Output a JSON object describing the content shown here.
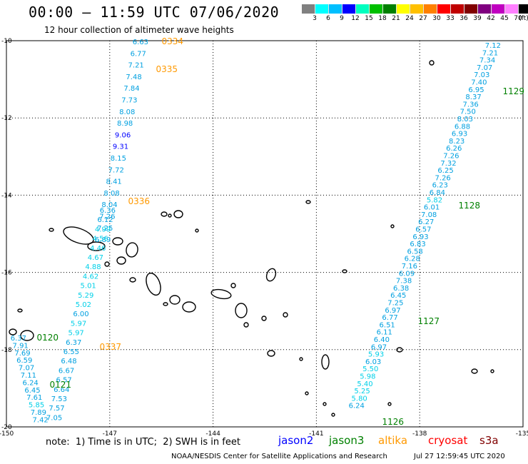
{
  "header": {
    "title": "00:00 – 11:59 UTC 07/06/2020",
    "subtitle": "12 hour collection of altimeter wave heights"
  },
  "colorbar": {
    "colors": [
      "#808080",
      "#00ffff",
      "#00bfff",
      "#0000ff",
      "#00ffbf",
      "#00c000",
      "#008000",
      "#ffff00",
      "#ffc000",
      "#ff8000",
      "#ff0000",
      "#c00000",
      "#800000",
      "#800080",
      "#c000c0",
      "#ff80ff",
      "#000000"
    ],
    "labels": [
      "3",
      "6",
      "9",
      "12",
      "15",
      "18",
      "21",
      "24",
      "27",
      "30",
      "33",
      "36",
      "39",
      "42",
      "45",
      "70"
    ],
    "unit": "(ft)"
  },
  "axes": {
    "lat_labels": [
      "-10",
      "-12",
      "-14",
      "-16",
      "-18",
      "-20"
    ],
    "lon_labels": [
      "-150",
      "-147",
      "-144",
      "-141",
      "-138",
      "-135"
    ]
  },
  "tracks": [
    {
      "satellite": "altika",
      "time": "0334",
      "values": [
        "6.63",
        "6.77",
        "7.21",
        "7.48",
        "7.84",
        "7.73",
        "8.08",
        "8.98",
        "9.06",
        "9.31",
        "8.15",
        "7.72",
        "8.41",
        "8.08",
        "8.04",
        "7.26",
        "7.25",
        "6.89"
      ]
    },
    {
      "satellite": "altika",
      "time": "0335",
      "values": []
    },
    {
      "satellite": "altika",
      "time": "0336",
      "values": [
        "6.36",
        "6.12",
        "4.99",
        "4.56",
        "4.46",
        "4.67",
        "4.88",
        "4.62",
        "5.01",
        "5.29",
        "5.02",
        "6.00",
        "5.97",
        "5.97",
        "6.37",
        "6.55",
        "6.48",
        "6.67",
        "6.57",
        "6.64",
        "7.53",
        "7.57",
        "7.05"
      ]
    },
    {
      "satellite": "altika",
      "time": "0337",
      "values": []
    },
    {
      "satellite": "jason3",
      "time": "0120",
      "values": [
        "6.37",
        "7.91",
        "7.69",
        "6.59",
        "7.07",
        "7.11",
        "6.24",
        "6.45",
        "7.61",
        "5.85",
        "7.89",
        "7.42"
      ]
    },
    {
      "satellite": "jason3",
      "time": "0121",
      "values": []
    },
    {
      "satellite": "jason3",
      "time": "1129",
      "values": [
        "7.12",
        "7.21",
        "7.34",
        "7.07",
        "7.03",
        "7.40",
        "6.95",
        "8.37",
        "7.36",
        "7.50",
        "8.03",
        "6.88",
        "6.93",
        "8.23",
        "6.26",
        "7.26",
        "7.32",
        "6.25",
        "7.26",
        "6.23",
        "6.84",
        "5.82",
        "6.01",
        "7.08",
        "6.27",
        "6.57",
        "6.93",
        "6.83",
        "6.58",
        "6.28",
        "7.16",
        "6.09",
        "7.38",
        "6.38",
        "6.45",
        "7.25",
        "6.97",
        "6.77",
        "6.51",
        "6.11",
        "6.40",
        "6.97",
        "5.93",
        "6.03",
        "5.50",
        "5.98",
        "5.40",
        "5.25",
        "5.80",
        "6.24"
      ]
    },
    {
      "satellite": "jason3",
      "time": "1128",
      "values": []
    },
    {
      "satellite": "jason3",
      "time": "1127",
      "values": []
    },
    {
      "satellite": "jason3",
      "time": "1126",
      "values": []
    }
  ],
  "footer": {
    "note": "note:  1) Time is in UTC;  2) SWH is in feet",
    "satellites": [
      {
        "name": "jason2",
        "color": "#0000ff"
      },
      {
        "name": "jason3",
        "color": "#008000"
      },
      {
        "name": "altika",
        "color": "#ff9900"
      },
      {
        "name": "cryosat",
        "color": "#ff0000"
      },
      {
        "name": "s3a",
        "color": "#800000"
      }
    ],
    "credit": "NOAA/NESDIS Center for Satellite Applications and Research",
    "timestamp": "Jul 27 12:59:45 UTC 2020"
  }
}
